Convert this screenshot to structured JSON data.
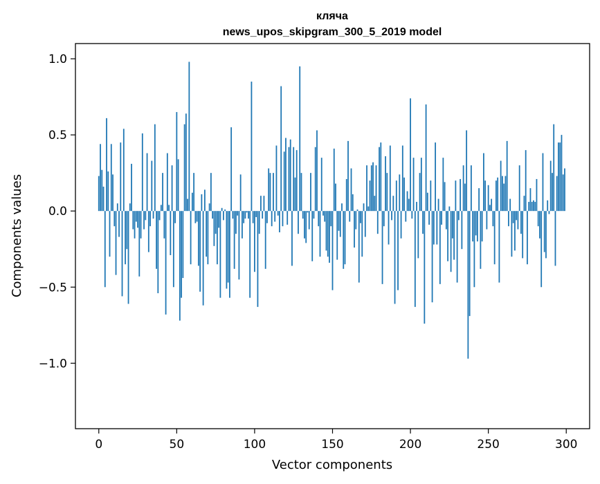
{
  "chart_data": {
    "type": "bar",
    "title": "кляча",
    "subtitle": "news_upos_skipgram_300_5_2019 model",
    "xlabel": "Vector components",
    "ylabel": "Components values",
    "xlim": [
      -15,
      315
    ],
    "ylim": [
      -1.43,
      1.1
    ],
    "xticks": [
      0,
      50,
      100,
      150,
      200,
      250,
      300
    ],
    "yticks": [
      1.0,
      0.5,
      0.0,
      -0.5,
      -1.0
    ],
    "xtick_labels": [
      "0",
      "50",
      "100",
      "150",
      "200",
      "250",
      "300"
    ],
    "ytick_labels": [
      "1.0",
      "0.5",
      "0.0",
      "−0.5",
      "−1.0"
    ],
    "grid": false,
    "legend": "none",
    "bar_color": "#1f77b4",
    "x_start": 0,
    "values": [
      0.23,
      0.44,
      0.27,
      0.16,
      -0.5,
      0.61,
      0.26,
      -0.3,
      0.44,
      0.24,
      -0.1,
      -0.42,
      0.05,
      -0.17,
      0.45,
      -0.56,
      0.54,
      -0.35,
      -0.25,
      -0.61,
      0.05,
      0.31,
      -0.12,
      -0.18,
      -0.07,
      -0.11,
      -0.43,
      -0.18,
      0.51,
      -0.12,
      -0.06,
      0.38,
      -0.27,
      -0.1,
      0.33,
      -0.05,
      0.57,
      -0.38,
      -0.54,
      -0.06,
      0.04,
      0.25,
      -0.18,
      -0.68,
      0.38,
      0.04,
      -0.29,
      0.3,
      -0.5,
      -0.08,
      0.65,
      0.34,
      -0.72,
      -0.57,
      -0.44,
      0.57,
      0.64,
      0.08,
      0.98,
      -0.35,
      0.12,
      0.25,
      -0.08,
      -0.07,
      -0.36,
      -0.53,
      0.11,
      -0.62,
      0.14,
      -0.3,
      -0.35,
      0.05,
      0.25,
      -0.05,
      -0.23,
      -0.15,
      -0.35,
      -0.11,
      -0.57,
      0.02,
      -0.06,
      0.01,
      -0.51,
      -0.47,
      -0.57,
      0.55,
      -0.05,
      -0.38,
      -0.15,
      -0.03,
      -0.45,
      0.24,
      -0.18,
      -0.08,
      -0.05,
      -0.01,
      -0.05,
      -0.57,
      0.85,
      -0.08,
      -0.4,
      -0.04,
      -0.63,
      -0.15,
      0.1,
      -0.05,
      0.1,
      -0.38,
      -0.08,
      0.28,
      0.25,
      -0.1,
      0.25,
      -0.07,
      0.43,
      -0.03,
      -0.14,
      0.82,
      -0.1,
      0.39,
      0.48,
      -0.09,
      0.42,
      0.47,
      -0.36,
      0.42,
      0.22,
      0.4,
      -0.15,
      0.95,
      0.25,
      -0.05,
      -0.18,
      -0.21,
      -0.01,
      -0.12,
      0.25,
      -0.33,
      -0.05,
      0.42,
      0.53,
      -0.1,
      -0.3,
      0.35,
      -0.03,
      -0.07,
      -0.26,
      -0.3,
      -0.34,
      -0.1,
      -0.52,
      0.41,
      0.18,
      -0.32,
      -0.13,
      -0.17,
      0.05,
      -0.38,
      -0.35,
      0.21,
      0.46,
      -0.07,
      0.28,
      0.11,
      -0.24,
      -0.12,
      0.01,
      -0.47,
      -0.08,
      -0.3,
      0.05,
      -0.17,
      0.3,
      0.03,
      0.2,
      0.3,
      0.32,
      0.1,
      0.3,
      -0.15,
      0.42,
      0.45,
      -0.48,
      -0.1,
      0.36,
      0.25,
      -0.22,
      0.43,
      -0.06,
      0.1,
      -0.61,
      0.2,
      -0.52,
      0.24,
      -0.18,
      0.43,
      0.22,
      -0.07,
      0.13,
      0.08,
      0.74,
      -0.05,
      0.35,
      -0.63,
      0.06,
      -0.31,
      0.25,
      0.35,
      -0.15,
      -0.74,
      0.7,
      0.12,
      -0.09,
      0.2,
      -0.6,
      -0.22,
      0.45,
      -0.22,
      0.08,
      -0.48,
      -0.09,
      0.35,
      0.19,
      -0.12,
      -0.33,
      0.03,
      -0.4,
      -0.18,
      -0.32,
      0.2,
      -0.47,
      -0.06,
      0.21,
      -0.25,
      0.3,
      0.18,
      0.53,
      -0.97,
      -0.69,
      0.3,
      -0.2,
      -0.5,
      -0.16,
      -0.2,
      0.15,
      -0.38,
      -0.2,
      0.38,
      0.2,
      -0.12,
      0.17,
      0.04,
      0.08,
      -0.1,
      -0.35,
      0.2,
      0.22,
      -0.47,
      0.33,
      0.23,
      0.18,
      0.23,
      0.46,
      -0.1,
      0.08,
      -0.3,
      -0.08,
      -0.26,
      -0.06,
      -0.12,
      0.3,
      -0.15,
      -0.31,
      0.1,
      0.4,
      -0.35,
      0.06,
      0.15,
      0.06,
      0.07,
      0.06,
      0.21,
      -0.1,
      -0.18,
      -0.5,
      0.38,
      -0.27,
      -0.31,
      0.07,
      -0.02,
      0.33,
      0.25,
      0.57,
      -0.36,
      0.23,
      0.45,
      0.45,
      0.5,
      0.24,
      0.28
    ]
  }
}
